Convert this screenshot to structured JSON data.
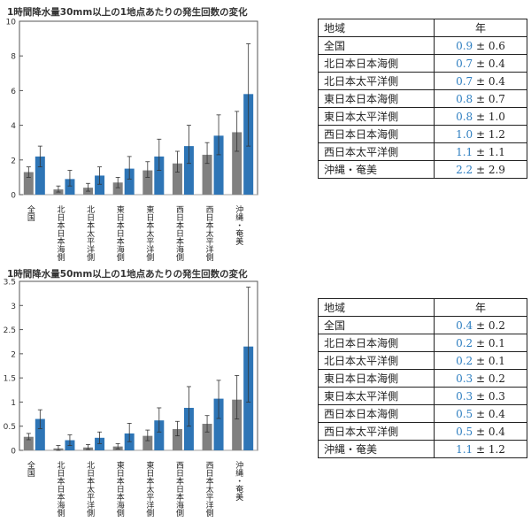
{
  "chart_data": [
    {
      "type": "bar",
      "title": "1時間降水量30mm以上の1地点あたりの発生回数の変化",
      "categories": [
        "全国",
        "北日本日本海側",
        "北日本太平洋側",
        "東日本日本海側",
        "東日本太平洋側",
        "西日本日本海側",
        "西日本太平洋側",
        "沖縄・奄美"
      ],
      "ylim": [
        0,
        10
      ],
      "yticks": [
        "0",
        "2",
        "4",
        "6",
        "8",
        "10"
      ],
      "series": [
        {
          "color": "#808080",
          "values": [
            1.3,
            0.3,
            0.4,
            0.7,
            1.4,
            1.8,
            2.3,
            3.6
          ],
          "err_low": [
            1.0,
            0.15,
            0.2,
            0.4,
            1.0,
            1.3,
            1.8,
            2.5
          ],
          "err_high": [
            1.6,
            0.5,
            0.65,
            1.0,
            1.9,
            2.5,
            3.0,
            4.8
          ]
        },
        {
          "color": "#2e75b6",
          "values": [
            2.2,
            0.9,
            1.1,
            1.5,
            2.2,
            2.8,
            3.4,
            5.8
          ],
          "err_low": [
            1.6,
            0.5,
            0.6,
            0.9,
            1.4,
            1.8,
            2.3,
            2.8
          ],
          "err_high": [
            2.8,
            1.4,
            1.6,
            2.2,
            3.2,
            4.0,
            4.6,
            8.7
          ]
        }
      ],
      "grid": false
    },
    {
      "type": "bar",
      "title": "1時間降水量50mm以上の1地点あたりの発生回数の変化",
      "categories": [
        "全国",
        "北日本日本海側",
        "北日本太平洋側",
        "東日本日本海側",
        "東日本太平洋側",
        "西日本日本海側",
        "西日本太平洋側",
        "沖縄・奄美"
      ],
      "ylim": [
        0,
        3.5
      ],
      "yticks": [
        "0",
        "0.5",
        "1",
        "1.5",
        "2",
        "2.5",
        "3",
        "3.5"
      ],
      "series": [
        {
          "color": "#808080",
          "values": [
            0.28,
            0.04,
            0.06,
            0.08,
            0.3,
            0.44,
            0.55,
            1.05
          ],
          "err_low": [
            0.22,
            0.0,
            0.02,
            0.03,
            0.2,
            0.3,
            0.38,
            0.65
          ],
          "err_high": [
            0.35,
            0.1,
            0.12,
            0.14,
            0.42,
            0.6,
            0.72,
            1.55
          ]
        },
        {
          "color": "#2e75b6",
          "values": [
            0.65,
            0.21,
            0.26,
            0.35,
            0.62,
            0.88,
            1.07,
            2.15
          ],
          "err_low": [
            0.45,
            0.1,
            0.14,
            0.18,
            0.38,
            0.5,
            0.66,
            1.0
          ],
          "err_high": [
            0.84,
            0.32,
            0.38,
            0.56,
            0.88,
            1.32,
            1.45,
            3.38
          ]
        }
      ],
      "grid": false
    }
  ],
  "tables": [
    {
      "header": {
        "region": "地域",
        "value": "年"
      },
      "rows": [
        {
          "region": "全国",
          "mean": "0.9",
          "pm": " ± 0.6"
        },
        {
          "region": "北日本日本海側",
          "mean": "0.7",
          "pm": " ± 0.4"
        },
        {
          "region": "北日本太平洋側",
          "mean": "0.7",
          "pm": " ± 0.4"
        },
        {
          "region": "東日本日本海側",
          "mean": "0.8",
          "pm": " ± 0.7"
        },
        {
          "region": "東日本太平洋側",
          "mean": "0.8",
          "pm": " ± 1.0"
        },
        {
          "region": "西日本日本海側",
          "mean": "1.0",
          "pm": " ± 1.2"
        },
        {
          "region": "西日本太平洋側",
          "mean": "1.1",
          "pm": " ± 1.1"
        },
        {
          "region": "沖縄・奄美",
          "mean": "2.2",
          "pm": " ± 2.9"
        }
      ]
    },
    {
      "header": {
        "region": "地域",
        "value": "年"
      },
      "rows": [
        {
          "region": "全国",
          "mean": "0.4",
          "pm": " ± 0.2"
        },
        {
          "region": "北日本日本海側",
          "mean": "0.2",
          "pm": " ± 0.1"
        },
        {
          "region": "北日本太平洋側",
          "mean": "0.2",
          "pm": " ± 0.1"
        },
        {
          "region": "東日本日本海側",
          "mean": "0.3",
          "pm": " ± 0.2"
        },
        {
          "region": "東日本太平洋側",
          "mean": "0.3",
          "pm": " ± 0.3"
        },
        {
          "region": "西日本日本海側",
          "mean": "0.5",
          "pm": " ± 0.4"
        },
        {
          "region": "西日本太平洋側",
          "mean": "0.5",
          "pm": " ± 0.4"
        },
        {
          "region": "沖縄・奄美",
          "mean": "1.1",
          "pm": " ± 1.2"
        }
      ]
    }
  ]
}
